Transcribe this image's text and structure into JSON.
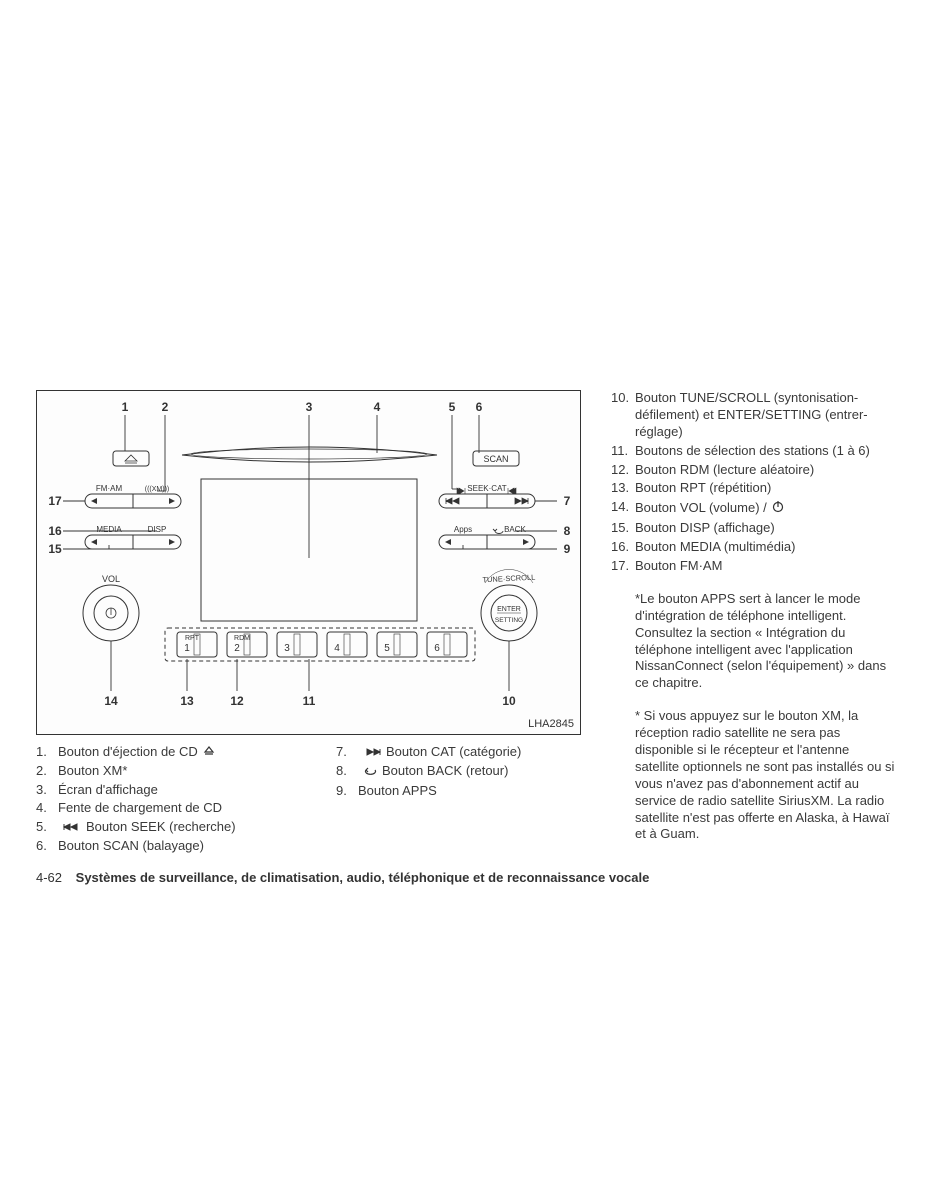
{
  "diagram": {
    "id_label": "LHA2845",
    "border_color": "#333333",
    "bg": "#fdfdfd",
    "callouts": [
      "1",
      "2",
      "3",
      "4",
      "5",
      "6",
      "7",
      "8",
      "9",
      "10",
      "11",
      "12",
      "13",
      "14",
      "15",
      "16",
      "17"
    ],
    "labels": {
      "scan": "SCAN",
      "fm_am": "FM·AM",
      "xm_icon": "(((XM)))",
      "seek_cat": "SEEK·CAT",
      "media": "MEDIA",
      "disp": "DISP",
      "apps": "Apps",
      "back": "BACK",
      "vol": "VOL",
      "tune_scroll": "TUNE·SCROLL",
      "enter": "ENTER",
      "setting": "SETTING",
      "rpt": "RPT",
      "rdm": "RDM",
      "preset": [
        "1",
        "2",
        "3",
        "4",
        "5",
        "6"
      ]
    },
    "stroke": "#333333",
    "stroke_width": 1,
    "font_size": 8,
    "callout_font_size": 11
  },
  "legend_left": [
    {
      "n": "1.",
      "t": "Bouton d'éjection de CD",
      "icon": "eject"
    },
    {
      "n": "2.",
      "t": "Bouton XM*"
    },
    {
      "n": "3.",
      "t": "Écran d'affichage"
    },
    {
      "n": "4.",
      "t": "Fente de chargement de CD"
    },
    {
      "n": "5.",
      "t": "Bouton SEEK (recherche)",
      "icon": "seek-back",
      "icon_before": true
    },
    {
      "n": "6.",
      "t": "Bouton SCAN (balayage)"
    }
  ],
  "legend_mid": [
    {
      "n": "7.",
      "t": "Bouton CAT (catégorie)",
      "icon": "seek-fwd",
      "icon_before": true
    },
    {
      "n": "8.",
      "t": "Bouton BACK (retour)",
      "icon": "back",
      "icon_before": true
    },
    {
      "n": "9.",
      "t": "Bouton APPS"
    }
  ],
  "legend_right": [
    {
      "n": "10.",
      "t": "Bouton TUNE/SCROLL (syntonisation-défilement) et ENTER/SETTING (entrer-réglage)"
    },
    {
      "n": "11.",
      "t": "Boutons de sélection des stations (1 à 6)"
    },
    {
      "n": "12.",
      "t": "Bouton RDM (lecture aléatoire)"
    },
    {
      "n": "13.",
      "t": "Bouton RPT (répétition)"
    },
    {
      "n": "14.",
      "t": "Bouton VOL (volume) /",
      "icon": "power"
    },
    {
      "n": "15.",
      "t": "Bouton DISP (affichage)"
    },
    {
      "n": "16.",
      "t": "Bouton MEDIA (multimédia)"
    },
    {
      "n": "17.",
      "t": "Bouton FM·AM"
    }
  ],
  "notes": [
    "*Le bouton APPS sert à lancer le mode d'intégration de téléphone intelligent. Consultez la section « Intégration du téléphone intelligent avec l'application NissanConnect (selon l'équipement) » dans ce chapitre.",
    "* Si vous appuyez sur le bouton XM, la réception radio satellite ne sera pas disponible si le récepteur et l'antenne satellite optionnels ne sont pas installés ou si vous n'avez pas d'abonnement actif au service de radio satellite SiriusXM. La radio satellite n'est pas offerte en Alaska, à Hawaï et à Guam."
  ],
  "footer": {
    "page": "4-62",
    "title": "Systèmes de surveillance, de climatisation, audio, téléphonique et de reconnaissance vocale"
  },
  "colors": {
    "text": "#3a3a3a",
    "stroke": "#333333"
  }
}
